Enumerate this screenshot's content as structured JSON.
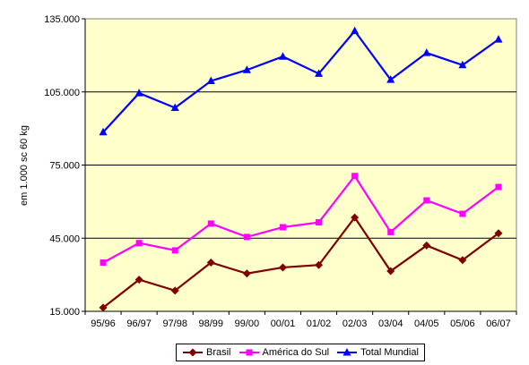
{
  "chart_data": {
    "type": "line",
    "title": "",
    "xlabel": "",
    "ylabel": "em 1.000 sc 60 kg",
    "categories": [
      "95/96",
      "96/97",
      "97/98",
      "98/99",
      "99/00",
      "00/01",
      "01/02",
      "02/03",
      "03/04",
      "04/05",
      "05/06",
      "06/07"
    ],
    "ylim": [
      15000,
      135000
    ],
    "yticks": [
      15000,
      45000,
      75000,
      105000,
      135000
    ],
    "ytick_labels": [
      "15.000",
      "45.000",
      "75.000",
      "105.000",
      "135.000"
    ],
    "grid": "horizontal",
    "legend_position": "bottom",
    "plot_background": "#FFFFCC",
    "series": [
      {
        "name": "Brasil",
        "color": "#800000",
        "marker": "diamond",
        "values": [
          16500,
          28000,
          23500,
          35000,
          30500,
          33000,
          34000,
          53500,
          31500,
          42000,
          36000,
          47000
        ]
      },
      {
        "name": "América do Sul",
        "color": "#FF00FF",
        "marker": "square",
        "values": [
          35000,
          43000,
          40000,
          51000,
          45500,
          49500,
          51500,
          70500,
          47500,
          60500,
          55000,
          66000
        ]
      },
      {
        "name": "Total Mundial",
        "color": "#0000FF",
        "marker": "triangle",
        "values": [
          88500,
          104500,
          98500,
          109500,
          114000,
          119500,
          112500,
          130000,
          110000,
          121000,
          116000,
          126500
        ]
      }
    ]
  }
}
